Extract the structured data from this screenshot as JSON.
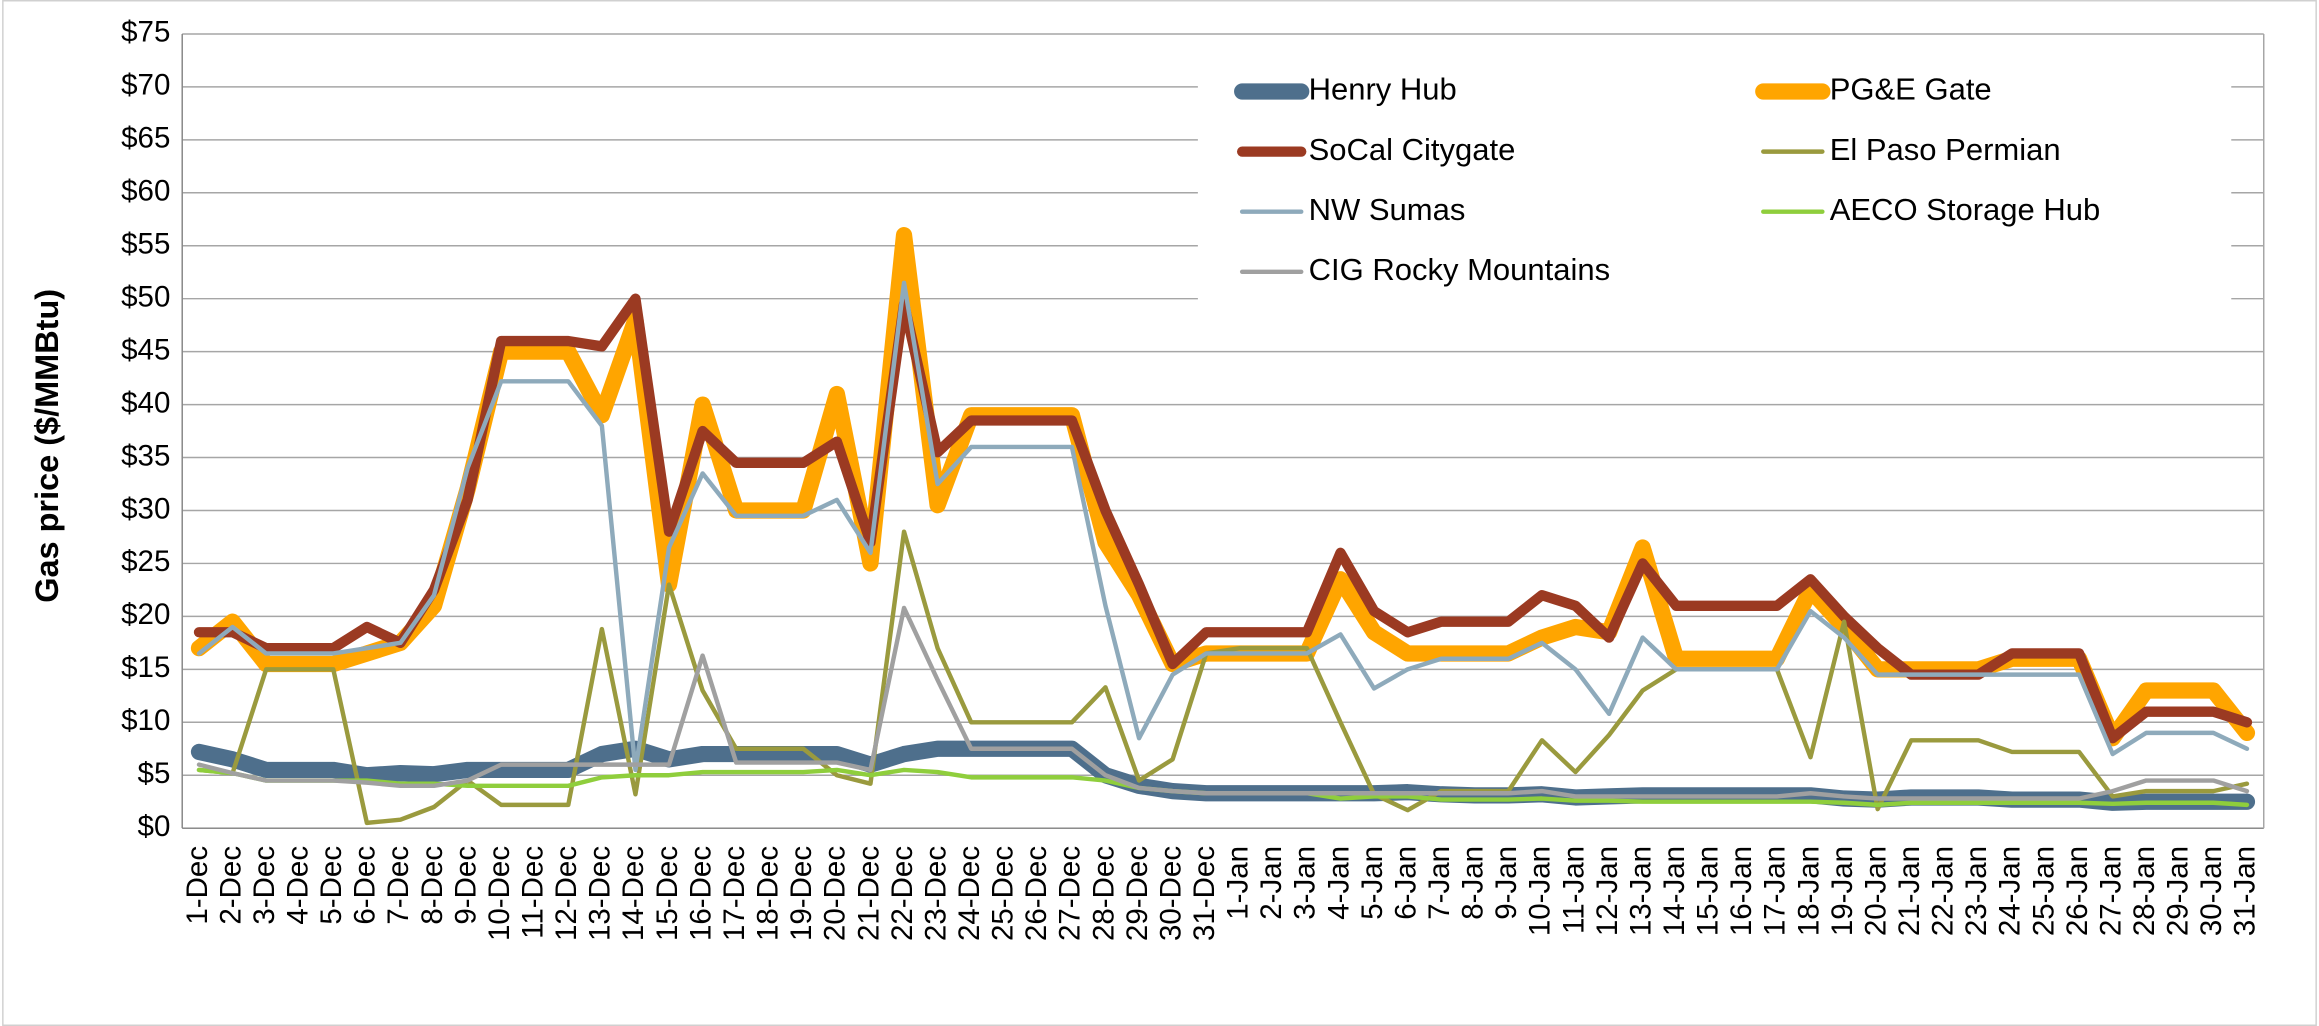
{
  "chart_data": {
    "type": "line",
    "y_label": "Gas price ($/MMBtu)",
    "categories": [
      "1-Dec",
      "2-Dec",
      "3-Dec",
      "4-Dec",
      "5-Dec",
      "6-Dec",
      "7-Dec",
      "8-Dec",
      "9-Dec",
      "10-Dec",
      "11-Dec",
      "12-Dec",
      "13-Dec",
      "14-Dec",
      "15-Dec",
      "16-Dec",
      "17-Dec",
      "18-Dec",
      "19-Dec",
      "20-Dec",
      "21-Dec",
      "22-Dec",
      "23-Dec",
      "24-Dec",
      "25-Dec",
      "26-Dec",
      "27-Dec",
      "28-Dec",
      "29-Dec",
      "30-Dec",
      "31-Dec",
      "1-Jan",
      "2-Jan",
      "3-Jan",
      "4-Jan",
      "5-Jan",
      "6-Jan",
      "7-Jan",
      "8-Jan",
      "9-Jan",
      "10-Jan",
      "11-Jan",
      "12-Jan",
      "13-Jan",
      "14-Jan",
      "15-Jan",
      "16-Jan",
      "17-Jan",
      "18-Jan",
      "19-Jan",
      "20-Jan",
      "21-Jan",
      "22-Jan",
      "23-Jan",
      "24-Jan",
      "25-Jan",
      "26-Jan",
      "27-Jan",
      "28-Jan",
      "29-Jan",
      "30-Jan",
      "31-Jan"
    ],
    "series": [
      {
        "name": "Henry Hub",
        "color": "#4e6f8c",
        "values": [
          7.2,
          6.5,
          5.5,
          5.5,
          5.5,
          5,
          5.2,
          5.1,
          5.5,
          5.5,
          5.5,
          5.5,
          7,
          7.5,
          6.5,
          7,
          7,
          7,
          7,
          7,
          6,
          7,
          7.5,
          7.5,
          7.5,
          7.5,
          7.5,
          5,
          4,
          3.5,
          3.3,
          3.3,
          3.3,
          3.3,
          3.3,
          3.3,
          3.4,
          3.2,
          3.1,
          3.1,
          3.2,
          2.9,
          3,
          3.1,
          3.1,
          3.1,
          3.1,
          3.1,
          3.1,
          2.8,
          2.7,
          2.9,
          2.9,
          2.9,
          2.7,
          2.7,
          2.7,
          2.4,
          2.5,
          2.5,
          2.5,
          2.5
        ]
      },
      {
        "name": "PG&E Gate",
        "color": "#ffa500",
        "values": [
          17,
          19.5,
          15.5,
          15.5,
          15.5,
          16.5,
          17.5,
          21,
          32,
          45,
          45,
          45,
          39,
          48,
          23,
          40,
          30,
          30,
          30,
          41,
          25,
          56,
          30.5,
          39,
          39,
          39,
          39,
          27,
          22,
          15.5,
          16.5,
          16.5,
          16.5,
          16.5,
          23.5,
          18.5,
          16.5,
          16.5,
          16.5,
          16.5,
          18,
          19,
          18.5,
          26.5,
          16,
          16,
          16,
          16,
          22.5,
          19,
          15,
          15,
          15,
          15,
          16,
          16,
          16,
          8.5,
          13,
          13,
          13,
          9
        ]
      },
      {
        "name": "SoCal Citygate",
        "color": "#9b3a22",
        "values": [
          18.5,
          18.5,
          17,
          17,
          17,
          19,
          17.5,
          22.5,
          31,
          46,
          46,
          46,
          45.5,
          50,
          28,
          37.5,
          34.5,
          34.5,
          34.5,
          36.5,
          27,
          49.5,
          35.5,
          38.5,
          38.5,
          38.5,
          38.5,
          30,
          23,
          15.5,
          18.5,
          18.5,
          18.5,
          18.5,
          26,
          20.5,
          18.5,
          19.5,
          19.5,
          19.5,
          22,
          21,
          18,
          25,
          21,
          21,
          21,
          21,
          23.5,
          20,
          17,
          14.5,
          14.5,
          14.5,
          16.5,
          16.5,
          16.5,
          8.5,
          11,
          11,
          11,
          10
        ]
      },
      {
        "name": "El Paso Permian",
        "color": "#9a9a3e",
        "values": [
          5.5,
          5.2,
          15,
          15,
          15,
          0.5,
          0.8,
          2,
          4.5,
          2.2,
          2.2,
          2.2,
          18.8,
          3.2,
          23,
          13,
          7.5,
          7.5,
          7.5,
          5,
          4.2,
          28,
          17,
          10,
          10,
          10,
          10,
          13.3,
          4.5,
          6.5,
          16.5,
          17,
          17,
          17,
          10,
          3.2,
          1.7,
          3.5,
          3.5,
          3.5,
          8.3,
          5.3,
          8.8,
          13,
          15,
          15,
          15,
          15,
          6.7,
          19.5,
          1.8,
          8.3,
          8.3,
          8.3,
          7.2,
          7.2,
          7.2,
          3,
          3.5,
          3.5,
          3.5,
          4.2
        ]
      },
      {
        "name": "NW Sumas",
        "color": "#8eaabb",
        "values": [
          16.5,
          19,
          16.5,
          16.5,
          16.5,
          17,
          17.5,
          22,
          34,
          42.2,
          42.2,
          42.2,
          38,
          5.5,
          26.5,
          33.5,
          29.5,
          29.5,
          29.5,
          31,
          26,
          51.5,
          32.5,
          36,
          36,
          36,
          36,
          21,
          8.5,
          14.5,
          16.5,
          16.5,
          16.5,
          16.5,
          18.3,
          13.2,
          15,
          16,
          16,
          16,
          17.5,
          15,
          10.8,
          18,
          15,
          15,
          15,
          15,
          20.5,
          18,
          14.5,
          14.5,
          14.5,
          14.5,
          14.5,
          14.5,
          14.5,
          7,
          9,
          9,
          9,
          7.5
        ]
      },
      {
        "name": "AECO Storage Hub",
        "color": "#8fce3c",
        "values": [
          5.5,
          5.2,
          4.5,
          4.5,
          4.5,
          4.5,
          4.2,
          4.2,
          4,
          4,
          4,
          4,
          4.8,
          5,
          5,
          5.3,
          5.3,
          5.3,
          5.3,
          5.5,
          5,
          5.5,
          5.3,
          4.8,
          4.8,
          4.8,
          4.8,
          4.5,
          3.8,
          3.5,
          3.3,
          3.3,
          3.3,
          3.3,
          2.8,
          3,
          3,
          2.7,
          2.7,
          2.7,
          2.8,
          2.6,
          2.6,
          2.5,
          2.5,
          2.5,
          2.5,
          2.5,
          2.5,
          2.4,
          2.2,
          2.4,
          2.4,
          2.4,
          2.4,
          2.4,
          2.4,
          2.3,
          2.4,
          2.4,
          2.4,
          2.2
        ]
      },
      {
        "name": "CIG Rocky Mountains",
        "color": "#a0a0a0",
        "values": [
          6,
          5.2,
          4.5,
          4.5,
          4.5,
          4.3,
          4,
          4,
          4.5,
          6,
          6,
          6,
          6,
          6,
          6,
          16.3,
          6.2,
          6.2,
          6.2,
          6.2,
          5.5,
          20.8,
          14,
          7.5,
          7.5,
          7.5,
          7.5,
          5,
          3.8,
          3.5,
          3.3,
          3.3,
          3.3,
          3.3,
          3.3,
          3.3,
          3.3,
          3.3,
          3.3,
          3.3,
          3.5,
          3,
          3,
          3,
          3,
          3,
          3,
          3,
          3.3,
          3,
          2.8,
          2.8,
          2.8,
          2.8,
          2.8,
          2.8,
          2.8,
          3.5,
          4.5,
          4.5,
          4.5,
          3.5
        ]
      }
    ],
    "ylim": [
      0,
      75
    ],
    "yticks": [
      {
        "value": 0,
        "label": "$0"
      },
      {
        "value": 5,
        "label": "$5"
      },
      {
        "value": 10,
        "label": "$10"
      },
      {
        "value": 15,
        "label": "$15"
      },
      {
        "value": 20,
        "label": "$20"
      },
      {
        "value": 25,
        "label": "$25"
      },
      {
        "value": 30,
        "label": "$30"
      },
      {
        "value": 35,
        "label": "$35"
      },
      {
        "value": 40,
        "label": "$40"
      },
      {
        "value": 45,
        "label": "$45"
      },
      {
        "value": 50,
        "label": "$50"
      },
      {
        "value": 55,
        "label": "$55"
      },
      {
        "value": 60,
        "label": "$60"
      },
      {
        "value": 65,
        "label": "$65"
      },
      {
        "value": 70,
        "label": "$70"
      },
      {
        "value": 75,
        "label": "$75"
      }
    ],
    "grid": true
  }
}
